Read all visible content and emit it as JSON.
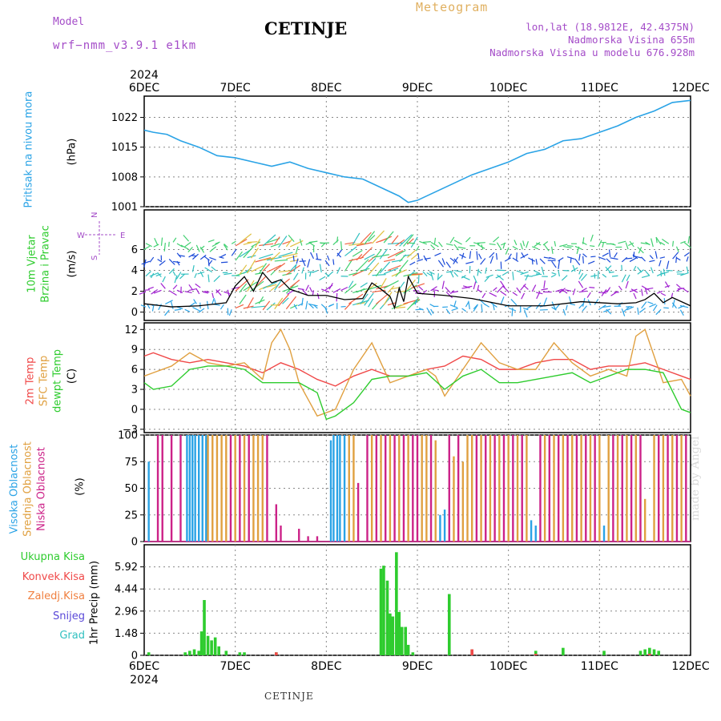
{
  "header": {
    "model_label": "Model",
    "model_name": "wrf−nmm_v3.9.1 e1km",
    "title": "CETINJE",
    "meteogram": "Meteogram",
    "lonlat": "lon,lat (18.9812E, 42.4375N)",
    "altitude": "Nadmorska Visina 655m",
    "model_altitude": "Nadmorska Visina u modelu 676.928m"
  },
  "footer": {
    "station": "CETINJE",
    "watermark": "made by Angel"
  },
  "time_axis": {
    "year": "2024",
    "labels": [
      "6DEC",
      "7DEC",
      "8DEC",
      "9DEC",
      "10DEC",
      "11DEC",
      "12DEC"
    ]
  },
  "colors": {
    "pressure": "#2aa3e6",
    "temp2m": "#f04848",
    "sfc": "#e0a040",
    "dew": "#2ecc2e",
    "high": "#2aa3e6",
    "mid": "#e0a040",
    "low": "#cc2288",
    "accent": "#a44cc8"
  },
  "chart_data": [
    {
      "type": "line",
      "panel": "pressure",
      "ylabel_main": "Pritisak na nivou mora",
      "ylabel_unit": "(hPa)",
      "yticks": [
        "1001",
        "1008",
        "1015",
        "1022"
      ],
      "ylim": [
        1001,
        1027
      ],
      "series": [
        {
          "x": [
            0,
            0.1,
            0.25,
            0.4,
            0.6,
            0.8,
            1.0,
            1.2,
            1.4,
            1.6,
            1.8,
            2.0,
            2.2,
            2.4,
            2.6,
            2.8,
            2.9,
            3.0,
            3.2,
            3.4,
            3.6,
            3.8,
            4.0,
            4.2,
            4.4,
            4.6,
            4.8,
            5.0,
            5.2,
            5.4,
            5.6,
            5.8,
            6.0
          ],
          "values": [
            1019,
            1018.5,
            1018,
            1016.5,
            1015,
            1013,
            1012.5,
            1011.5,
            1010.5,
            1011.5,
            1010,
            1009,
            1008,
            1007.5,
            1005.5,
            1003.5,
            1002,
            1002.5,
            1004.5,
            1006.5,
            1008.5,
            1010,
            1011.5,
            1013.5,
            1014.5,
            1016.5,
            1017,
            1018.5,
            1020,
            1022,
            1023.5,
            1025.5,
            1026
          ]
        }
      ]
    },
    {
      "type": "line",
      "panel": "wind",
      "ylabel_main": "10m Vjetar",
      "ylabel_sub": "Brzina i Pravac",
      "ylabel_unit": "(m/s)",
      "compass": [
        "N",
        "W",
        "E",
        "S"
      ],
      "yticks": [
        "0",
        "2",
        "4",
        "6"
      ],
      "ylim": [
        -0.8,
        9.8
      ],
      "series": [
        {
          "x": [
            0,
            0.3,
            0.6,
            0.9,
            1.0,
            1.1,
            1.2,
            1.3,
            1.4,
            1.5,
            1.6,
            1.8,
            2.0,
            2.2,
            2.4,
            2.5,
            2.6,
            2.7,
            2.75,
            2.8,
            2.85,
            2.9,
            3.0,
            3.3,
            3.6,
            4.0,
            4.4,
            4.8,
            5.2,
            5.4,
            5.5,
            5.6,
            5.7,
            5.8,
            6.0
          ],
          "values": [
            0.8,
            0.5,
            0.6,
            0.9,
            2.5,
            3.4,
            2.0,
            3.8,
            2.8,
            3.1,
            2.2,
            1.6,
            1.6,
            1.2,
            1.3,
            2.8,
            2.2,
            1.5,
            0.4,
            2.3,
            1.0,
            3.4,
            1.8,
            1.6,
            1.3,
            0.6,
            0.6,
            1.0,
            0.8,
            0.9,
            1.2,
            1.8,
            0.9,
            1.4,
            0.6
          ]
        }
      ]
    },
    {
      "type": "line",
      "panel": "temperature",
      "ylabel_a": "2m Temp",
      "ylabel_b": "SFC Temp",
      "ylabel_c": "dewpt Temp",
      "ylabel_unit": "(C)",
      "yticks": [
        "−3",
        "0",
        "3",
        "6",
        "9",
        "12"
      ],
      "ylim": [
        -3.5,
        13
      ],
      "series": [
        {
          "x": [
            0,
            0.1,
            0.3,
            0.5,
            0.7,
            0.9,
            1.1,
            1.3,
            1.5,
            1.7,
            1.9,
            2.1,
            2.3,
            2.5,
            2.7,
            2.9,
            3.1,
            3.3,
            3.5,
            3.7,
            3.9,
            4.1,
            4.3,
            4.5,
            4.7,
            4.9,
            5.1,
            5.3,
            5.5,
            5.7,
            5.9,
            6.0
          ],
          "values": [
            8,
            8.5,
            7.5,
            7,
            7.5,
            7,
            6.5,
            5.5,
            7,
            6,
            4.5,
            3.5,
            5,
            6,
            5,
            5,
            6,
            6.5,
            8,
            7.5,
            6,
            6,
            7,
            7.5,
            7.5,
            6,
            6.5,
            6.5,
            7,
            6,
            5,
            4.5
          ]
        },
        {
          "x": [
            0,
            0.1,
            0.3,
            0.5,
            0.7,
            0.9,
            1.1,
            1.3,
            1.4,
            1.5,
            1.6,
            1.7,
            1.9,
            2.1,
            2.3,
            2.5,
            2.7,
            2.9,
            3.1,
            3.2,
            3.3,
            3.5,
            3.7,
            3.9,
            4.1,
            4.3,
            4.5,
            4.7,
            4.9,
            5.1,
            5.3,
            5.4,
            5.5,
            5.6,
            5.7,
            5.9,
            6.0
          ],
          "values": [
            5,
            5.5,
            6.5,
            8.5,
            7,
            6.5,
            7,
            4.5,
            10,
            12,
            9,
            4,
            -1,
            0,
            6,
            10,
            4,
            5,
            6,
            5,
            2,
            6,
            10,
            7,
            6,
            6,
            10,
            7,
            5,
            6,
            5,
            11,
            12,
            8,
            4,
            4.5,
            2
          ]
        },
        {
          "x": [
            0,
            0.1,
            0.3,
            0.5,
            0.7,
            0.9,
            1.1,
            1.3,
            1.5,
            1.7,
            1.9,
            2.0,
            2.1,
            2.3,
            2.5,
            2.7,
            2.9,
            3.1,
            3.3,
            3.5,
            3.7,
            3.9,
            4.1,
            4.3,
            4.5,
            4.7,
            4.9,
            5.1,
            5.3,
            5.5,
            5.7,
            5.9,
            6.0
          ],
          "values": [
            4,
            3,
            3.5,
            6,
            6.5,
            6.5,
            6,
            4,
            4,
            4,
            2.5,
            -1.5,
            -1,
            1,
            4.5,
            5,
            5,
            5.5,
            3,
            5,
            6,
            4,
            4,
            4.5,
            5,
            5.5,
            4,
            5,
            6,
            6,
            5.5,
            0,
            -0.5
          ]
        }
      ]
    },
    {
      "type": "bar",
      "panel": "cloud",
      "ylabel_a": "Visoka Oblacnost",
      "ylabel_b": "Srednja Oblacnost",
      "ylabel_c": "Niska Oblacnost",
      "ylabel_unit": "(%)",
      "yticks": [
        "0",
        "25",
        "50",
        "75",
        "100"
      ],
      "ylim": [
        0,
        100
      ],
      "series": [
        {
          "x": [
            0.05,
            0.47,
            0.5,
            0.53,
            0.56,
            0.6,
            0.64,
            0.68,
            2.05,
            2.08,
            2.12,
            2.15,
            2.2,
            3.25,
            3.3,
            4.25,
            4.3,
            5.05
          ],
          "values": [
            75,
            100,
            100,
            100,
            100,
            100,
            100,
            100,
            95,
            100,
            100,
            100,
            100,
            25,
            30,
            20,
            15,
            15
          ]
        },
        {
          "x": [
            0.7,
            0.75,
            0.8,
            0.85,
            0.9,
            1.0,
            1.1,
            1.2,
            1.25,
            1.3,
            2.25,
            2.3,
            2.5,
            2.6,
            2.7,
            2.8,
            2.9,
            3.05,
            3.1,
            3.2,
            3.4,
            3.5,
            3.55,
            3.6,
            3.7,
            3.8,
            3.9,
            4.0,
            4.1,
            4.2,
            4.4,
            4.5,
            4.6,
            4.7,
            4.8,
            4.9,
            5.0,
            5.1,
            5.2,
            5.3,
            5.4,
            5.5,
            5.6,
            5.7,
            5.8,
            5.9
          ],
          "values": [
            100,
            100,
            100,
            100,
            100,
            100,
            100,
            100,
            100,
            100,
            100,
            100,
            100,
            100,
            100,
            100,
            100,
            100,
            100,
            95,
            80,
            75,
            100,
            100,
            100,
            100,
            100,
            100,
            100,
            100,
            100,
            100,
            100,
            100,
            100,
            100,
            100,
            100,
            100,
            100,
            100,
            40,
            100,
            100,
            100,
            100
          ]
        },
        {
          "x": [
            0.15,
            0.2,
            0.3,
            0.4,
            0.95,
            1.05,
            1.15,
            1.35,
            1.45,
            1.5,
            1.7,
            1.8,
            1.9,
            2.35,
            2.45,
            2.55,
            2.65,
            2.75,
            2.85,
            2.95,
            3.0,
            3.15,
            3.35,
            3.45,
            3.65,
            3.75,
            3.85,
            3.95,
            4.05,
            4.15,
            4.35,
            4.45,
            4.55,
            4.65,
            4.75,
            4.85,
            4.95,
            5.15,
            5.25,
            5.35,
            5.45,
            5.65,
            5.75,
            5.85,
            5.95
          ],
          "values": [
            100,
            100,
            100,
            100,
            100,
            100,
            100,
            100,
            35,
            15,
            12,
            5,
            5,
            55,
            100,
            100,
            100,
            100,
            100,
            100,
            100,
            100,
            100,
            100,
            100,
            100,
            100,
            100,
            100,
            100,
            100,
            100,
            100,
            100,
            100,
            100,
            100,
            100,
            100,
            100,
            100,
            100,
            100,
            100,
            100
          ]
        }
      ]
    },
    {
      "type": "bar",
      "panel": "precip",
      "ylabel_a": "1hr Precip",
      "ylabel_unit": "(mm)",
      "legend": [
        "Ukupna Kisa",
        "Konvek.Kisa",
        "Zaledj.Kisa",
        "Snijeg",
        "Grad"
      ],
      "yticks": [
        "0",
        "1.48",
        "2.96",
        "4.44",
        "5.92"
      ],
      "ylim": [
        0,
        7.4
      ],
      "series": [
        {
          "x": [
            0.05,
            0.45,
            0.5,
            0.55,
            0.6,
            0.63,
            0.66,
            0.7,
            0.74,
            0.78,
            0.82,
            0.9,
            1.05,
            1.1,
            1.45,
            2.6,
            2.63,
            2.67,
            2.7,
            2.73,
            2.77,
            2.8,
            2.83,
            2.87,
            2.9,
            2.95,
            3.35,
            3.6,
            4.3,
            4.6,
            5.05,
            5.45,
            5.5,
            5.55,
            5.6,
            5.65
          ],
          "values": [
            0.2,
            0.2,
            0.3,
            0.4,
            0.3,
            1.6,
            3.7,
            1.3,
            1.0,
            1.2,
            0.6,
            0.3,
            0.2,
            0.2,
            0.2,
            5.8,
            6.0,
            5.0,
            2.8,
            2.6,
            6.9,
            2.9,
            1.9,
            1.9,
            0.7,
            0.2,
            4.1,
            0.4,
            0.3,
            0.5,
            0.3,
            0.3,
            0.4,
            0.5,
            0.4,
            0.3
          ]
        },
        {
          "x": [
            1.45,
            3.6,
            4.3,
            5.55
          ],
          "values": [
            0.2,
            0.4,
            0.1,
            0.1
          ]
        }
      ]
    }
  ]
}
